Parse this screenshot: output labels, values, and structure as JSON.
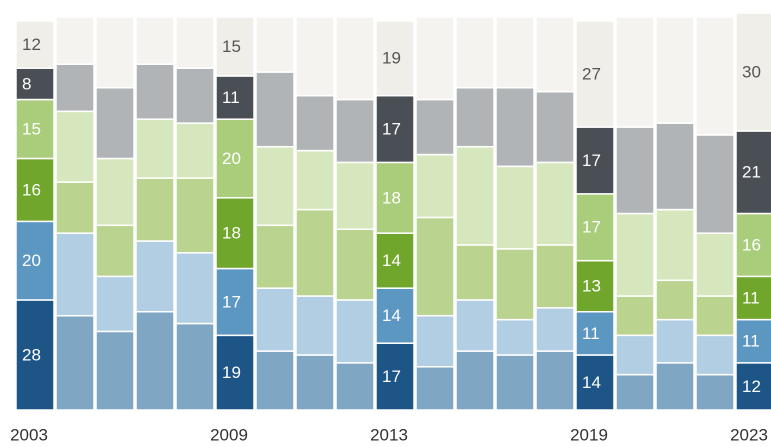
{
  "chart_data": {
    "type": "stacked_bar",
    "categories": [
      "2003",
      null,
      null,
      null,
      null,
      "2009",
      null,
      null,
      null,
      "2013",
      null,
      null,
      null,
      null,
      "2019",
      null,
      null,
      null,
      "2023"
    ],
    "highlight": [
      true,
      false,
      false,
      false,
      false,
      true,
      false,
      false,
      false,
      true,
      false,
      false,
      false,
      false,
      true,
      false,
      false,
      false,
      true
    ],
    "series": [
      {
        "color": "#1d5586",
        "muted_color": "#7fa6c3",
        "values": [
          28,
          24,
          20,
          25,
          22,
          19,
          15,
          14,
          12,
          17,
          11,
          15,
          14,
          15,
          14,
          9,
          12,
          9,
          12
        ]
      },
      {
        "color": "#5c97c1",
        "muted_color": "#b2cee2",
        "values": [
          20,
          21,
          14,
          18,
          18,
          17,
          16,
          15,
          16,
          14,
          13,
          13,
          9,
          11,
          11,
          10,
          11,
          10,
          11
        ]
      },
      {
        "color": "#70a62b",
        "muted_color": "#bad38f",
        "values": [
          16,
          13,
          13,
          16,
          19,
          18,
          16,
          22,
          18,
          14,
          25,
          14,
          18,
          16,
          13,
          10,
          10,
          10,
          11
        ]
      },
      {
        "color": "#a9cd7b",
        "muted_color": "#d7e7bd",
        "values": [
          15,
          18,
          17,
          15,
          14,
          20,
          20,
          15,
          17,
          18,
          16,
          25,
          21,
          21,
          17,
          21,
          18,
          16,
          16
        ]
      },
      {
        "color": "#4a4f55",
        "muted_color": "#b1b4b6",
        "values": [
          8,
          12,
          18,
          14,
          14,
          11,
          19,
          14,
          16,
          17,
          14,
          15,
          20,
          18,
          17,
          22,
          22,
          25,
          21
        ]
      },
      {
        "color": "#f0eee9",
        "muted_color": "#f5f3f0",
        "values": [
          12,
          12,
          18,
          12,
          13,
          15,
          14,
          20,
          21,
          19,
          21,
          18,
          18,
          19,
          27,
          28,
          27,
          30,
          30
        ]
      }
    ],
    "ylim": [
      0,
      100
    ]
  }
}
